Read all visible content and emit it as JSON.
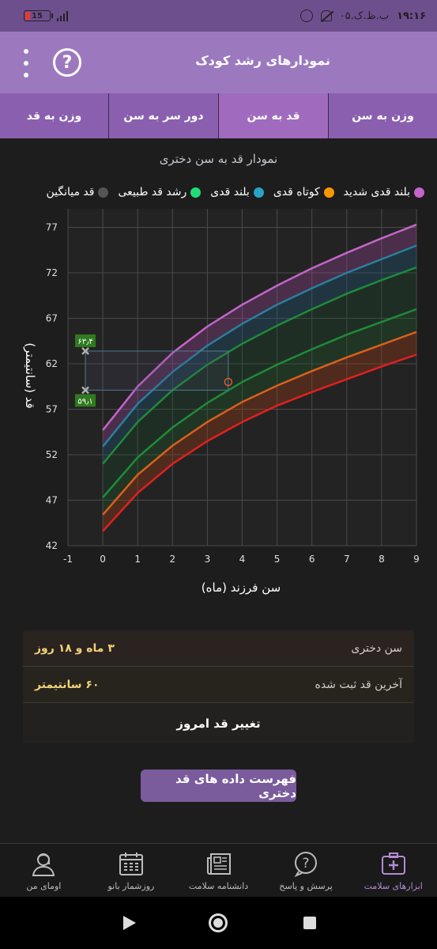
{
  "status_bar": {
    "battery": "15",
    "time": "۱۹:۱۶",
    "carrier_text": "ب.ظ.ک.۰۵"
  },
  "app_bar": {
    "title": "نمودارهای رشد کودک"
  },
  "tabs": [
    {
      "label": "وزن به قد",
      "active": false
    },
    {
      "label": "دور سر به سن",
      "active": false
    },
    {
      "label": "قد به سن",
      "active": true
    },
    {
      "label": "وزن به سن",
      "active": false
    }
  ],
  "chart": {
    "title": "نمودار قد به سن دختری",
    "legend": [
      {
        "label": "بلند قدی شدید",
        "color": "#c266c9"
      },
      {
        "label": "کوتاه قدی",
        "color": "#ff9800"
      },
      {
        "label": "بلند قدی",
        "color": "#29a3c6"
      },
      {
        "label": "رشد قد طبیعی",
        "color": "#22dd77"
      },
      {
        "label": "قد میانگین",
        "color": "#555555"
      }
    ],
    "marker_labels": {
      "upper": "۶۳٫۴",
      "lower": "۵۹٫۱"
    }
  },
  "chart_data": {
    "type": "line",
    "xlabel": "سن فرزند (ماه)",
    "ylabel": "قد (سانتیمتر)",
    "xlim": [
      -1,
      9
    ],
    "ylim": [
      42,
      78
    ],
    "x_ticks": [
      "-1",
      "0",
      "1",
      "2",
      "3",
      "4",
      "5",
      "6",
      "7",
      "8",
      "9"
    ],
    "y_ticks": [
      "42",
      "47",
      "52",
      "57",
      "62",
      "67",
      "72",
      "77"
    ],
    "x": [
      0,
      1,
      2,
      3,
      4,
      5,
      6,
      7,
      8,
      9
    ],
    "series": [
      {
        "color": "#c266c9",
        "values": [
          54.7,
          59.5,
          63.2,
          66.1,
          68.5,
          70.6,
          72.5,
          74.2,
          75.8,
          77.3
        ]
      },
      {
        "color": "#29809e",
        "values": [
          52.9,
          57.6,
          61.1,
          64.0,
          66.4,
          68.5,
          70.3,
          72.0,
          73.5,
          75.0
        ]
      },
      {
        "color": "#1f8a3a",
        "values": [
          51.0,
          55.6,
          59.1,
          61.9,
          64.2,
          66.2,
          68.0,
          69.7,
          71.2,
          72.6
        ]
      },
      {
        "color": "#1f8a3a",
        "values": [
          47.3,
          51.7,
          55.0,
          57.7,
          60.0,
          61.9,
          63.6,
          65.2,
          66.6,
          68.0
        ]
      },
      {
        "color": "#d9601c",
        "values": [
          45.4,
          49.8,
          53.0,
          55.6,
          57.8,
          59.6,
          61.2,
          62.7,
          64.1,
          65.5
        ]
      },
      {
        "color": "#e02020",
        "values": [
          43.6,
          47.8,
          51.0,
          53.5,
          55.6,
          57.4,
          58.9,
          60.3,
          61.7,
          63.0
        ]
      }
    ],
    "reference_points": [
      {
        "x": -0.5,
        "y": 63.4
      },
      {
        "x": -0.5,
        "y": 59.1
      }
    ],
    "child_point": {
      "x": 3.6,
      "y": 60
    }
  },
  "card": {
    "age_label": "سن دختری",
    "age_value": "۳ ماه و ۱۸ روز",
    "height_label": "آخرین قد ثبت شده",
    "height_value": "۶۰ سانتیمتر",
    "change_label": "تغییر قد امروز"
  },
  "list_button": "فهرست داده های قد دختری",
  "bottom_nav": [
    {
      "label": "ابزارهای سلامت",
      "icon": "medical-bag-icon",
      "active": true
    },
    {
      "label": "پرسش و پاسخ",
      "icon": "question-bubble-icon",
      "active": false
    },
    {
      "label": "دانشنامه سلامت",
      "icon": "newspaper-icon",
      "active": false
    },
    {
      "label": "روزشمار بانو",
      "icon": "calendar-icon",
      "active": false
    },
    {
      "label": "اومای من",
      "icon": "profile-icon",
      "active": false
    }
  ]
}
